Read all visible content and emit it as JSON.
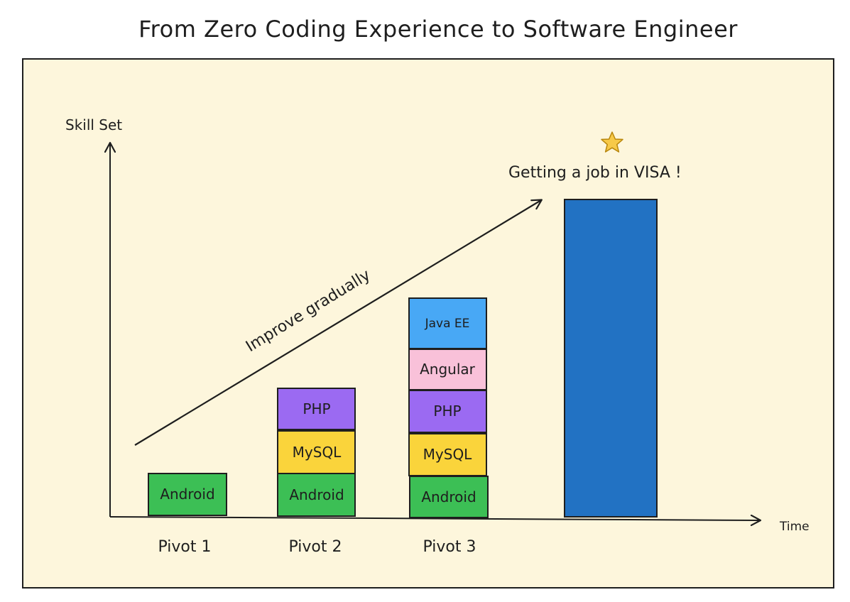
{
  "title": "From Zero Coding Experience to Software Engineer",
  "axes": {
    "y_label": "Skill Set",
    "x_label": "Time"
  },
  "trend_label": "Improve gradually",
  "goal": {
    "icon": "star-icon",
    "label": "Getting a job in VISA !"
  },
  "pivots": [
    {
      "label": "Pivot 1",
      "skills": [
        "Android"
      ]
    },
    {
      "label": "Pivot 2",
      "skills": [
        "Android",
        "MySQL",
        "PHP"
      ]
    },
    {
      "label": "Pivot 3",
      "skills": [
        "Android",
        "MySQL",
        "PHP",
        "Angular",
        "Java EE"
      ]
    }
  ],
  "colors": {
    "panel_bg": "#fdf6dc",
    "ink": "#1e1e1e",
    "Android": "#3cbf55",
    "MySQL": "#fad43b",
    "PHP": "#9b6af2",
    "Angular": "#f9c1d9",
    "Java EE": "#48a8f5",
    "goal_bar": "#2272c3",
    "star": "#f7c948"
  }
}
